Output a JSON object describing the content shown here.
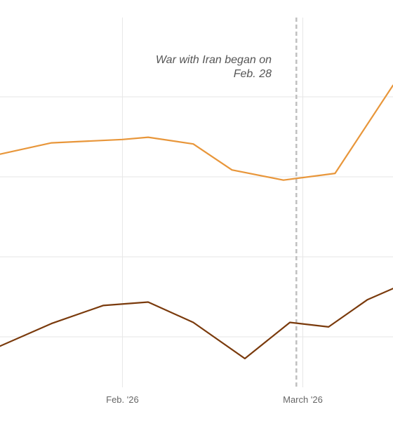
{
  "colors": {
    "series_light": "#e8963a",
    "series_dark": "#7a3a0c",
    "grid": "#e6e6e6",
    "event_line": "#c0c0c0",
    "tick_text": "#666666",
    "annotation_text": "#555555"
  },
  "chart_data": {
    "type": "line",
    "title": "",
    "xlabel": "",
    "ylabel": "",
    "x_ticks": [
      {
        "date": "2026-02-01",
        "label": "Feb. '26"
      },
      {
        "date": "2026-03-01",
        "label": "March '26"
      }
    ],
    "x_range": [
      "2026-01-13",
      "2026-03-15"
    ],
    "grid": true,
    "y_gridlines": 5,
    "series": [
      {
        "key": "light",
        "color": "#e8963a",
        "points": [
          {
            "date": "2026-01-13",
            "y": 75.8
          },
          {
            "date": "2026-01-21",
            "y": 77.8
          },
          {
            "date": "2026-02-01",
            "y": 78.4
          },
          {
            "date": "2026-02-05",
            "y": 78.8
          },
          {
            "date": "2026-02-12",
            "y": 77.6
          },
          {
            "date": "2026-02-18",
            "y": 73.0
          },
          {
            "date": "2026-02-26",
            "y": 71.2
          },
          {
            "date": "2026-03-06",
            "y": 72.4
          },
          {
            "date": "2026-03-15",
            "y": 88.0
          }
        ]
      },
      {
        "key": "dark",
        "color": "#7a3a0c",
        "points": [
          {
            "date": "2026-01-13",
            "y": 41.8
          },
          {
            "date": "2026-01-21",
            "y": 45.8
          },
          {
            "date": "2026-01-29",
            "y": 49.0
          },
          {
            "date": "2026-02-05",
            "y": 49.6
          },
          {
            "date": "2026-02-12",
            "y": 46.0
          },
          {
            "date": "2026-02-20",
            "y": 39.6
          },
          {
            "date": "2026-02-27",
            "y": 46.0
          },
          {
            "date": "2026-03-05",
            "y": 45.2
          },
          {
            "date": "2026-03-11",
            "y": 50.0
          },
          {
            "date": "2026-03-15",
            "y": 52.0
          }
        ]
      }
    ],
    "annotations": [
      {
        "date": "2026-02-28",
        "line1": "War with Iran began on",
        "line2": "Feb. 28"
      }
    ]
  }
}
